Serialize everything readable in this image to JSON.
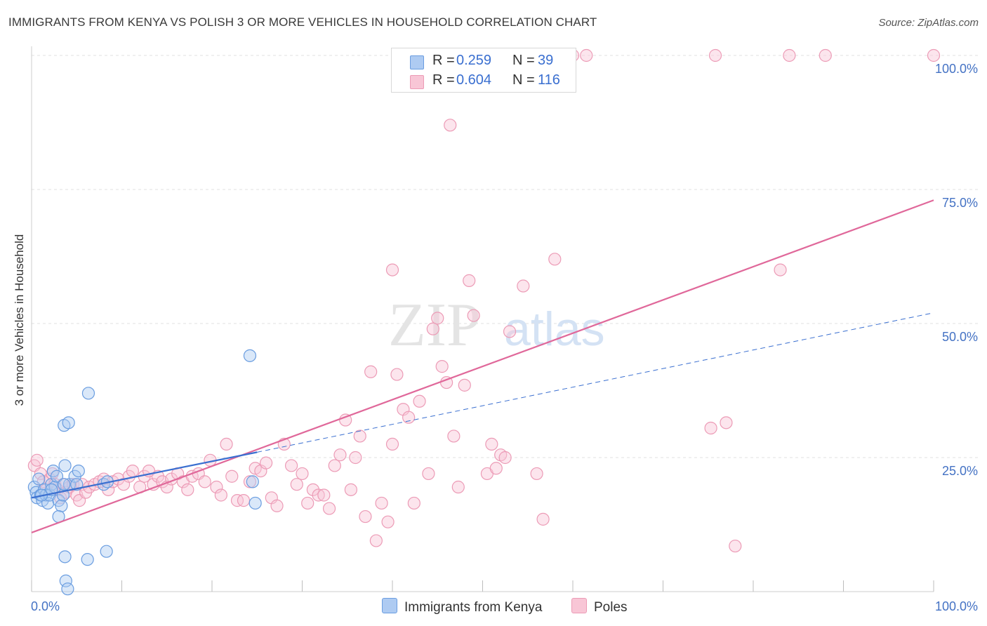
{
  "title": "IMMIGRANTS FROM KENYA VS POLISH 3 OR MORE VEHICLES IN HOUSEHOLD CORRELATION CHART",
  "source": "Source: ZipAtlas.com",
  "watermark": {
    "zip": "ZIP",
    "atlas": "atlas"
  },
  "legend": {
    "kenya": {
      "r_label": "R =",
      "r_value": "0.259",
      "n_label": "N =",
      "n_value": "39"
    },
    "poles": {
      "r_label": "R =",
      "r_value": "0.604",
      "n_label": "N =",
      "n_value": "116"
    }
  },
  "bottom_legend": {
    "kenya": "Immigrants from Kenya",
    "poles": "Poles"
  },
  "colors": {
    "kenya_fill": "#aecbf2",
    "kenya_stroke": "#6a9de0",
    "kenya_line": "#3a6fd0",
    "poles_fill": "#f8c6d6",
    "poles_stroke": "#ec9bb6",
    "poles_line": "#e0689a",
    "axis_label": "#4472c4"
  },
  "chart_data": {
    "type": "scatter",
    "title": "IMMIGRANTS FROM KENYA VS POLISH 3 OR MORE VEHICLES IN HOUSEHOLD CORRELATION CHART",
    "xlabel": "",
    "ylabel": "3 or more Vehicles in Household",
    "xlim": [
      0,
      100
    ],
    "ylim": [
      0,
      100
    ],
    "x_tick_labels": [
      "0.0%",
      "100.0%"
    ],
    "y_tick_labels": [
      {
        "value": 25,
        "label": "25.0%"
      },
      {
        "value": 50,
        "label": "50.0%"
      },
      {
        "value": 75,
        "label": "75.0%"
      },
      {
        "value": 100,
        "label": "100.0%"
      }
    ],
    "series": [
      {
        "name": "Immigrants from Kenya",
        "R": 0.259,
        "N": 39,
        "trend": {
          "x0": 0,
          "y0": 17.5,
          "x1": 25,
          "y1": 26.0,
          "dashed_to_x": 100,
          "dashed_to_y": 52.0
        },
        "points": [
          [
            0.3,
            19.5
          ],
          [
            0.5,
            18.5
          ],
          [
            0.6,
            17.5
          ],
          [
            0.8,
            21
          ],
          [
            1.0,
            18
          ],
          [
            1.2,
            17
          ],
          [
            1.4,
            19
          ],
          [
            1.6,
            18
          ],
          [
            1.8,
            16.5
          ],
          [
            2.0,
            18
          ],
          [
            2.2,
            20
          ],
          [
            2.4,
            22.5
          ],
          [
            2.6,
            19.5
          ],
          [
            2.8,
            21.5
          ],
          [
            3.0,
            17
          ],
          [
            3.3,
            16
          ],
          [
            3.5,
            18
          ],
          [
            3.0,
            14
          ],
          [
            3.7,
            23.5
          ],
          [
            4.2,
            20
          ],
          [
            4.8,
            21.5
          ],
          [
            5.0,
            20
          ],
          [
            5.2,
            22.5
          ],
          [
            3.6,
            20
          ],
          [
            3.6,
            31
          ],
          [
            4.1,
            31.5
          ],
          [
            6.3,
            37
          ],
          [
            8.0,
            20
          ],
          [
            8.4,
            20.5
          ],
          [
            6.2,
            6
          ],
          [
            8.3,
            7.5
          ],
          [
            3.7,
            6.5
          ],
          [
            3.8,
            2
          ],
          [
            4.0,
            0.5
          ],
          [
            24.5,
            20.5
          ],
          [
            24.8,
            16.5
          ],
          [
            24.2,
            44
          ],
          [
            2.2,
            19
          ],
          [
            1.1,
            18
          ]
        ]
      },
      {
        "name": "Poles",
        "R": 0.604,
        "N": 116,
        "trend": {
          "x0": 0,
          "y0": 11.0,
          "x1": 100,
          "y1": 73.0
        },
        "points": [
          [
            0.3,
            23.5
          ],
          [
            0.6,
            24.5
          ],
          [
            1.0,
            22
          ],
          [
            1.3,
            20.5
          ],
          [
            1.6,
            19
          ],
          [
            2.0,
            21
          ],
          [
            2.3,
            22
          ],
          [
            2.6,
            20
          ],
          [
            2.9,
            19
          ],
          [
            3.2,
            17.5
          ],
          [
            3.5,
            20
          ],
          [
            3.8,
            18.5
          ],
          [
            4.2,
            19.5
          ],
          [
            4.6,
            20
          ],
          [
            5.0,
            18
          ],
          [
            5.3,
            17
          ],
          [
            5.6,
            20
          ],
          [
            6.0,
            18.5
          ],
          [
            6.4,
            19.5
          ],
          [
            7.0,
            20
          ],
          [
            7.5,
            20.5
          ],
          [
            8.0,
            21
          ],
          [
            8.5,
            19
          ],
          [
            9.0,
            20.5
          ],
          [
            9.6,
            21
          ],
          [
            10.2,
            20
          ],
          [
            10.8,
            21.5
          ],
          [
            11.2,
            22.5
          ],
          [
            12.0,
            19.5
          ],
          [
            12.5,
            21.5
          ],
          [
            13.0,
            22.5
          ],
          [
            13.5,
            20
          ],
          [
            14.0,
            21.5
          ],
          [
            14.5,
            20.5
          ],
          [
            15.0,
            19.5
          ],
          [
            15.5,
            21
          ],
          [
            16.2,
            22
          ],
          [
            16.8,
            20.5
          ],
          [
            17.3,
            19
          ],
          [
            17.8,
            21.5
          ],
          [
            18.5,
            22
          ],
          [
            19.2,
            20.5
          ],
          [
            19.8,
            24.5
          ],
          [
            20.5,
            19.5
          ],
          [
            21.0,
            18
          ],
          [
            21.6,
            27.5
          ],
          [
            22.2,
            21.5
          ],
          [
            22.8,
            17
          ],
          [
            23.5,
            17
          ],
          [
            24.2,
            20.5
          ],
          [
            24.8,
            23
          ],
          [
            25.4,
            22.5
          ],
          [
            26.0,
            24
          ],
          [
            26.6,
            17.5
          ],
          [
            27.2,
            16
          ],
          [
            28.0,
            27.5
          ],
          [
            28.8,
            23.5
          ],
          [
            29.4,
            20
          ],
          [
            30.0,
            22
          ],
          [
            30.6,
            16.5
          ],
          [
            31.2,
            19
          ],
          [
            31.8,
            18
          ],
          [
            32.4,
            18
          ],
          [
            33.0,
            15.5
          ],
          [
            33.6,
            23.5
          ],
          [
            34.2,
            25.5
          ],
          [
            34.8,
            32
          ],
          [
            35.4,
            19
          ],
          [
            35.9,
            25
          ],
          [
            36.4,
            29
          ],
          [
            37.0,
            14
          ],
          [
            37.6,
            41
          ],
          [
            38.2,
            9.5
          ],
          [
            38.8,
            16.5
          ],
          [
            39.5,
            13
          ],
          [
            40.0,
            27.5
          ],
          [
            40.5,
            40.5
          ],
          [
            41.2,
            34
          ],
          [
            41.8,
            32.5
          ],
          [
            42.4,
            16.5
          ],
          [
            43.0,
            35.5
          ],
          [
            44.0,
            22
          ],
          [
            44.5,
            49
          ],
          [
            45.0,
            51
          ],
          [
            45.5,
            42
          ],
          [
            46.0,
            39
          ],
          [
            46.4,
            87
          ],
          [
            46.8,
            29
          ],
          [
            47.3,
            19.5
          ],
          [
            48.0,
            38.5
          ],
          [
            48.5,
            58
          ],
          [
            49.0,
            51.5
          ],
          [
            50.5,
            22
          ],
          [
            51.0,
            27.5
          ],
          [
            51.5,
            23
          ],
          [
            52.0,
            25.5
          ],
          [
            52.5,
            25
          ],
          [
            53.0,
            48.5
          ],
          [
            54.5,
            57
          ],
          [
            56.0,
            22
          ],
          [
            56.7,
            13.5
          ],
          [
            58.0,
            62
          ],
          [
            60.0,
            100
          ],
          [
            61.5,
            100
          ],
          [
            75.3,
            30.5
          ],
          [
            75.8,
            100
          ],
          [
            77.0,
            31.5
          ],
          [
            78.0,
            8.5
          ],
          [
            83.0,
            60
          ],
          [
            84.0,
            100
          ],
          [
            88.0,
            100
          ],
          [
            100.0,
            100
          ],
          [
            47.5,
            100
          ],
          [
            52.0,
            100
          ],
          [
            40.0,
            60
          ],
          [
            43.0,
            100
          ]
        ]
      }
    ]
  }
}
